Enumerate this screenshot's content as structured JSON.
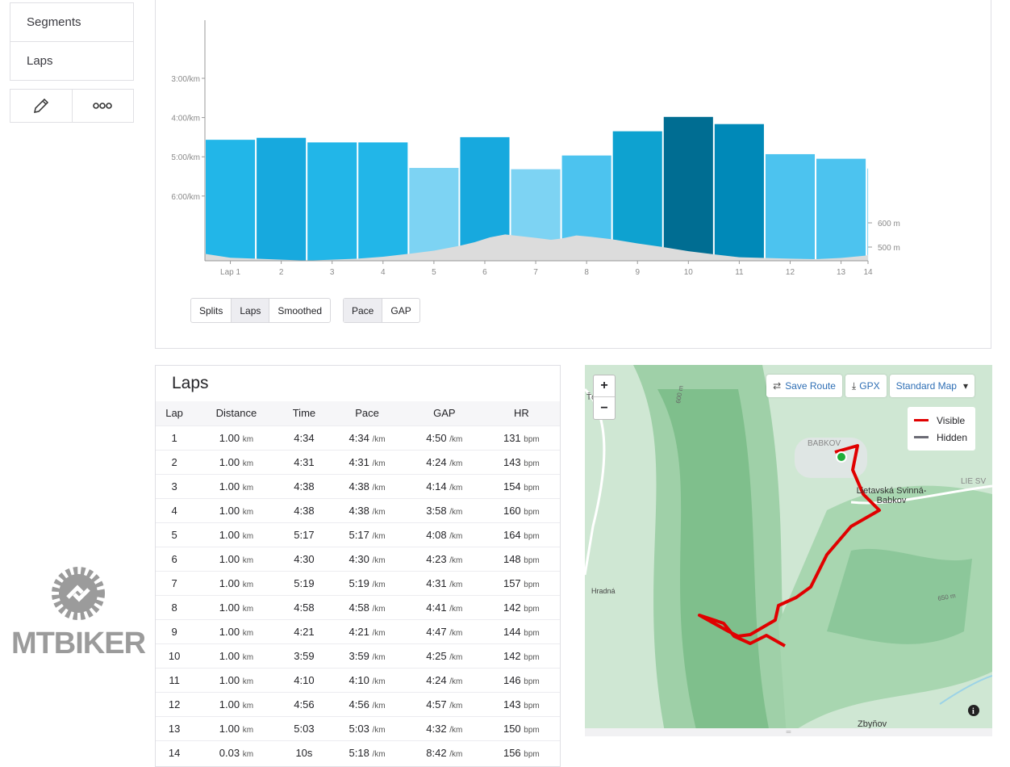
{
  "sidebar": {
    "items": [
      {
        "label": "Segments"
      },
      {
        "label": "Laps"
      }
    ],
    "edit_icon": "pencil-icon",
    "more_icon": "more-icon"
  },
  "chart_controls": {
    "group1": [
      "Splits",
      "Laps",
      "Smoothed"
    ],
    "group1_active": "Laps",
    "group2": [
      "Pace",
      "GAP"
    ],
    "group2_active": "Pace"
  },
  "chart_data": {
    "type": "bar",
    "title": "",
    "x_ticks": [
      "Lap 1",
      "2",
      "3",
      "4",
      "5",
      "6",
      "7",
      "8",
      "9",
      "10",
      "11",
      "12",
      "13",
      "14"
    ],
    "y_ticks": [
      "3:00/km",
      "4:00/km",
      "5:00/km",
      "6:00/km"
    ],
    "y2_ticks": [
      "600 m",
      "500 m"
    ],
    "series": [
      {
        "name": "Pace (s/km)",
        "values": [
          274,
          271,
          278,
          278,
          317,
          270,
          319,
          298,
          261,
          239,
          250,
          296,
          303,
          318
        ]
      },
      {
        "name": "Lap distance (km)",
        "values": [
          1,
          1,
          1,
          1,
          1,
          1,
          1,
          1,
          1,
          1,
          1,
          1,
          1,
          0.03
        ]
      }
    ],
    "elevation": {
      "km": [
        0,
        0.5,
        1,
        1.5,
        2,
        2.5,
        3,
        3.5,
        4,
        4.5,
        5,
        5.3,
        5.6,
        5.9,
        6.2,
        6.5,
        6.8,
        7,
        7.3,
        7.6,
        8,
        8.5,
        9,
        9.5,
        10,
        10.5,
        11,
        11.5,
        12,
        12.5,
        13,
        13.03
      ],
      "m": [
        472,
        456,
        452,
        448,
        444,
        448,
        452,
        460,
        472,
        485,
        505,
        520,
        540,
        552,
        545,
        538,
        530,
        535,
        548,
        542,
        532,
        515,
        500,
        483,
        470,
        458,
        455,
        452,
        450,
        455,
        465,
        468
      ]
    },
    "ylim_pace_min": [
      2,
      7.5
    ]
  },
  "laps": {
    "title": "Laps",
    "columns": [
      "Lap",
      "Distance",
      "Time",
      "Pace",
      "GAP",
      "HR"
    ],
    "rows": [
      [
        "1",
        "1.00",
        "4:34",
        "4:34",
        "4:50",
        "131"
      ],
      [
        "2",
        "1.00",
        "4:31",
        "4:31",
        "4:24",
        "143"
      ],
      [
        "3",
        "1.00",
        "4:38",
        "4:38",
        "4:14",
        "154"
      ],
      [
        "4",
        "1.00",
        "4:38",
        "4:38",
        "3:58",
        "160"
      ],
      [
        "5",
        "1.00",
        "5:17",
        "5:17",
        "4:08",
        "164"
      ],
      [
        "6",
        "1.00",
        "4:30",
        "4:30",
        "4:23",
        "148"
      ],
      [
        "7",
        "1.00",
        "5:19",
        "5:19",
        "4:31",
        "157"
      ],
      [
        "8",
        "1.00",
        "4:58",
        "4:58",
        "4:41",
        "142"
      ],
      [
        "9",
        "1.00",
        "4:21",
        "4:21",
        "4:47",
        "144"
      ],
      [
        "10",
        "1.00",
        "3:59",
        "3:59",
        "4:25",
        "142"
      ],
      [
        "11",
        "1.00",
        "4:10",
        "4:10",
        "4:24",
        "146"
      ],
      [
        "12",
        "1.00",
        "4:56",
        "4:56",
        "4:57",
        "143"
      ],
      [
        "13",
        "1.00",
        "5:03",
        "5:03",
        "4:32",
        "150"
      ],
      [
        "14",
        "0.03",
        "10s",
        "5:18",
        "8:42",
        "156"
      ]
    ],
    "units": {
      "dist": "km",
      "pace": "/km",
      "hr": "bpm"
    }
  },
  "map": {
    "zoom_in": "+",
    "zoom_out": "−",
    "save_route": "Save Route",
    "gpx": "GPX",
    "map_type": "Standard Map",
    "legend": [
      {
        "label": "Visible",
        "color": "#e00000"
      },
      {
        "label": "Hidden",
        "color": "#6b6b75"
      }
    ],
    "places": [
      "BABKOV",
      "Lietavská Svinná-Babkov",
      "Hradná",
      "Zbyňov",
      "LIE SV",
      "Ťov",
      "600 m",
      "650 m"
    ]
  },
  "watermark": "MTBIKER"
}
